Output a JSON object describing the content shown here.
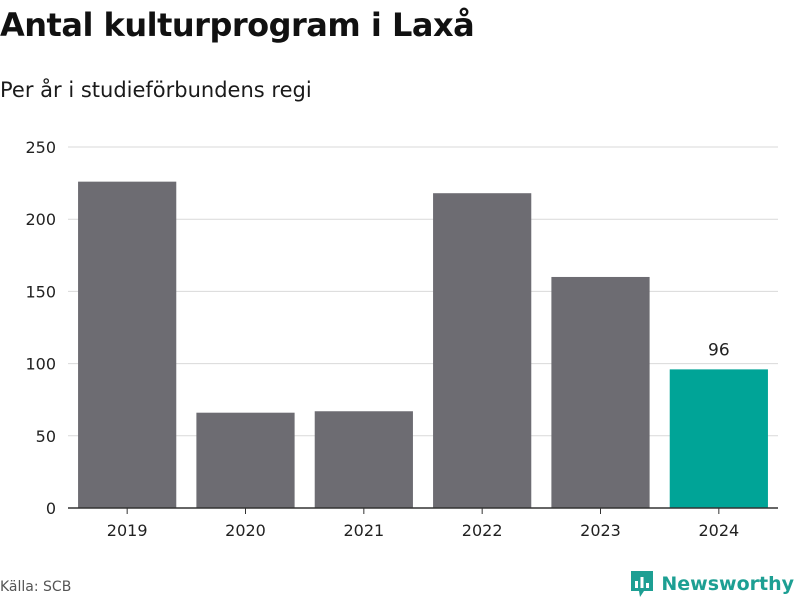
{
  "title": "Antal kulturprogram i Laxå",
  "subtitle": "Per år i studieförbundens regi",
  "source": "Källa: SCB",
  "brand": {
    "name": "Newsworthy",
    "icon": "newsworthy-logo-icon",
    "color": "#1d9f93"
  },
  "chart_data": {
    "type": "bar",
    "categories": [
      "2019",
      "2020",
      "2021",
      "2022",
      "2023",
      "2024"
    ],
    "values": [
      226,
      66,
      67,
      218,
      160,
      96
    ],
    "ylim": [
      0,
      250
    ],
    "yticks": [
      0,
      50,
      100,
      150,
      200,
      250
    ],
    "grid": true,
    "legend": "none",
    "colors": {
      "default": "#6d6c72",
      "highlight": "#00a497"
    },
    "highlight_index": 5,
    "data_labels": [
      {
        "index": 5,
        "text": "96"
      }
    ],
    "xlabel": "",
    "ylabel": ""
  }
}
